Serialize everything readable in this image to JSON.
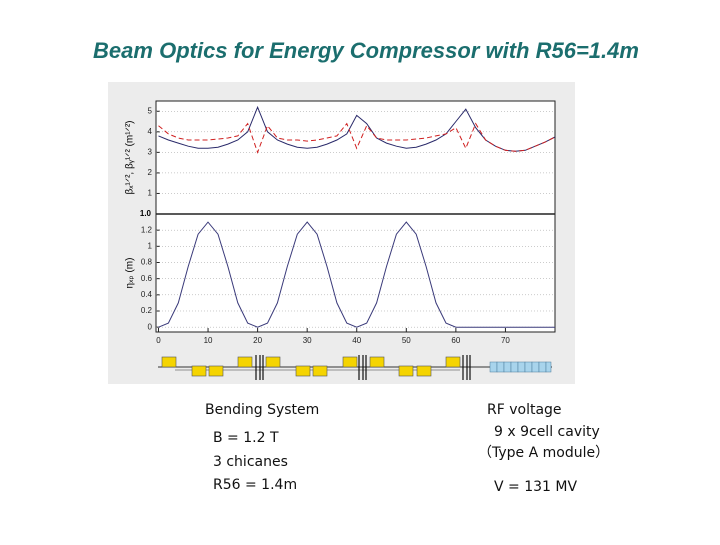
{
  "title": "Beam Optics for Energy Compressor with R56=1.4m",
  "bending": {
    "heading": "Bending System",
    "lines": [
      "B = 1.2 T",
      "3 chicanes",
      "R56 = 1.4m"
    ]
  },
  "rf": {
    "heading": "RF voltage",
    "lines": [
      "9 x 9cell cavity",
      "（Type A module）"
    ],
    "voltage": "V = 131 MV"
  },
  "panel_note": "1.0",
  "chart_data": [
    {
      "type": "line",
      "ylabel": "βₓ¹ᐟ², βᵧ¹ᐟ² (m¹ᐟ²)",
      "x": [
        0,
        2,
        4,
        6,
        8,
        10,
        12,
        14,
        16,
        18,
        20,
        22,
        24,
        26,
        28,
        30,
        32,
        34,
        36,
        38,
        40,
        42,
        44,
        46,
        48,
        50,
        52,
        54,
        56,
        58,
        60,
        62,
        64,
        66,
        68,
        70,
        72,
        74,
        76,
        78,
        80
      ],
      "series": [
        {
          "color": "#2a2a6a",
          "dash": false,
          "values": [
            3.8,
            3.6,
            3.45,
            3.3,
            3.2,
            3.2,
            3.25,
            3.4,
            3.6,
            4.0,
            5.2,
            4.0,
            3.6,
            3.4,
            3.25,
            3.2,
            3.25,
            3.4,
            3.6,
            3.9,
            4.8,
            4.4,
            3.7,
            3.45,
            3.3,
            3.2,
            3.25,
            3.4,
            3.6,
            3.9,
            4.5,
            5.1,
            4.2,
            3.6,
            3.3,
            3.1,
            3.05,
            3.1,
            3.3,
            3.5,
            3.75
          ]
        },
        {
          "color": "#d02020",
          "dash": true,
          "values": [
            4.3,
            3.9,
            3.7,
            3.6,
            3.6,
            3.6,
            3.65,
            3.7,
            3.8,
            4.4,
            3.0,
            4.3,
            3.7,
            3.6,
            3.6,
            3.55,
            3.6,
            3.7,
            3.8,
            4.4,
            3.2,
            4.3,
            3.7,
            3.6,
            3.6,
            3.6,
            3.65,
            3.7,
            3.8,
            3.9,
            4.2,
            3.2,
            4.4,
            3.6,
            3.3,
            3.1,
            3.05,
            3.1,
            3.3,
            3.5,
            3.75
          ]
        }
      ],
      "xlim": [
        -0.5,
        80
      ],
      "ylim": [
        0,
        5.5
      ],
      "yticks": [
        1,
        2,
        3,
        4,
        5
      ],
      "grid": true
    },
    {
      "type": "line",
      "ylabel": "ηₓₚ (m)",
      "x": [
        0,
        2,
        4,
        6,
        8,
        10,
        12,
        14,
        16,
        18,
        20,
        22,
        24,
        26,
        28,
        30,
        32,
        34,
        36,
        38,
        40,
        42,
        44,
        46,
        48,
        50,
        52,
        54,
        56,
        58,
        60,
        62,
        64,
        66,
        68,
        70,
        72,
        74,
        76,
        78,
        80
      ],
      "series": [
        {
          "color": "#3a3a7a",
          "dash": false,
          "values": [
            0,
            0.05,
            0.3,
            0.75,
            1.15,
            1.3,
            1.15,
            0.75,
            0.3,
            0.05,
            0,
            0.05,
            0.3,
            0.75,
            1.15,
            1.3,
            1.15,
            0.75,
            0.3,
            0.05,
            0,
            0.05,
            0.3,
            0.75,
            1.15,
            1.3,
            1.15,
            0.75,
            0.3,
            0.05,
            0,
            0,
            0,
            0,
            0,
            0,
            0,
            0,
            0,
            0,
            0
          ]
        }
      ],
      "xlim": [
        -0.5,
        80
      ],
      "ylim": [
        -0.06,
        1.4
      ],
      "yticks": [
        0,
        0.2,
        0.4,
        0.6,
        0.8,
        1,
        1.2
      ],
      "xticks": [
        0,
        10,
        20,
        30,
        40,
        50,
        60,
        70
      ],
      "grid": true
    }
  ]
}
